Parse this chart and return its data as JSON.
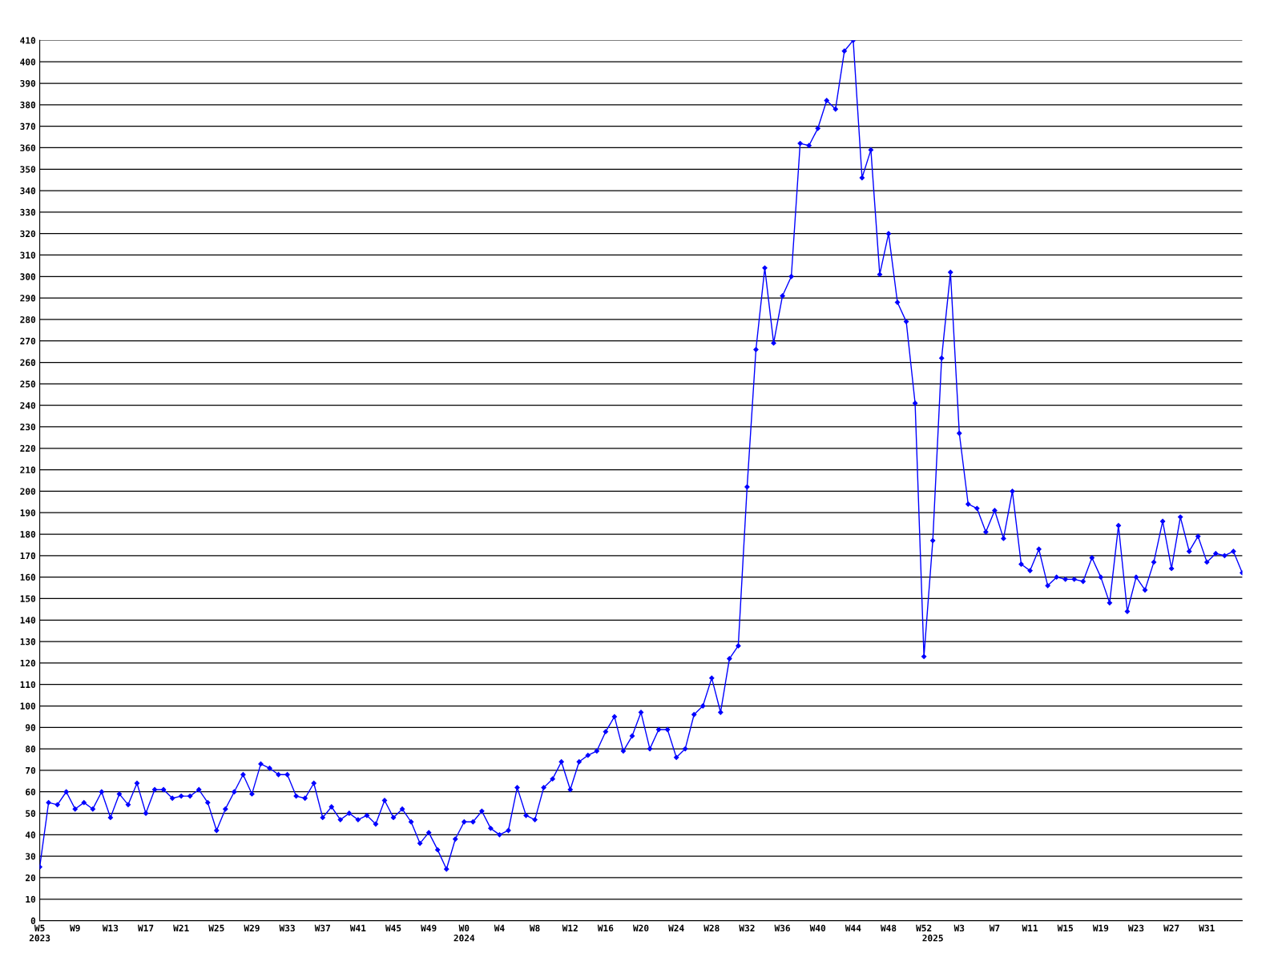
{
  "chart_data": {
    "type": "line",
    "categories": [
      "W5\n2023",
      null,
      null,
      null,
      "W9",
      null,
      null,
      null,
      "W13",
      null,
      null,
      null,
      "W17",
      null,
      null,
      null,
      "W21",
      null,
      null,
      null,
      "W25",
      null,
      null,
      null,
      "W29",
      null,
      null,
      null,
      "W33",
      null,
      null,
      null,
      "W37",
      null,
      null,
      null,
      "W41",
      null,
      null,
      null,
      "W45",
      null,
      null,
      null,
      "W49",
      null,
      null,
      null,
      "W0\n2024",
      null,
      null,
      null,
      "W4",
      null,
      null,
      null,
      "W8",
      null,
      null,
      null,
      "W12",
      null,
      null,
      null,
      "W16",
      null,
      null,
      null,
      "W20",
      null,
      null,
      null,
      "W24",
      null,
      null,
      null,
      "W28",
      null,
      null,
      null,
      "W32",
      null,
      null,
      null,
      "W36",
      null,
      null,
      null,
      "W40",
      null,
      null,
      null,
      "W44",
      null,
      null,
      null,
      "W48",
      null,
      null,
      null,
      "W52",
      "\n2025",
      null,
      null,
      "W3",
      null,
      null,
      null,
      "W7",
      null,
      null,
      null,
      "W11",
      null,
      null,
      null,
      "W15",
      null,
      null,
      null,
      "W19",
      null,
      null,
      null,
      "W23",
      null,
      null,
      null,
      "W27",
      null,
      null,
      null,
      "W31",
      null,
      null,
      null,
      null
    ],
    "series": [
      {
        "color": "#0000ff",
        "values": [
          25,
          55,
          54,
          60,
          52,
          55,
          52,
          60,
          48,
          59,
          54,
          64,
          50,
          61,
          61,
          57,
          58,
          58,
          61,
          55,
          42,
          52,
          60,
          68,
          59,
          73,
          71,
          68,
          68,
          58,
          57,
          64,
          48,
          53,
          47,
          50,
          47,
          49,
          45,
          56,
          48,
          52,
          46,
          36,
          41,
          33,
          24,
          38,
          46,
          46,
          51,
          43,
          40,
          42,
          62,
          49,
          47,
          62,
          66,
          74,
          61,
          74,
          77,
          79,
          88,
          95,
          79,
          86,
          97,
          80,
          89,
          89,
          76,
          80,
          96,
          100,
          113,
          97,
          122,
          128,
          202,
          266,
          304,
          269,
          291,
          300,
          362,
          361,
          369,
          382,
          378,
          405,
          410,
          346,
          359,
          301,
          320,
          288,
          279,
          241,
          123,
          177,
          262,
          302,
          227,
          194,
          192,
          181,
          191,
          178,
          200,
          166,
          163,
          173,
          156,
          160,
          159,
          159,
          158,
          169,
          160,
          148,
          184,
          144,
          160,
          154,
          167,
          186,
          164,
          188,
          172,
          179,
          167,
          171,
          170,
          172,
          162
        ]
      }
    ],
    "ylim": [
      0,
      410
    ],
    "yticks": [
      0,
      10,
      20,
      30,
      40,
      50,
      60,
      70,
      80,
      90,
      100,
      110,
      120,
      130,
      140,
      150,
      160,
      170,
      180,
      190,
      200,
      210,
      220,
      230,
      240,
      250,
      260,
      270,
      280,
      290,
      300,
      310,
      320,
      330,
      340,
      350,
      360,
      370,
      380,
      390,
      400,
      410
    ],
    "grid": "y",
    "marker": "diamond",
    "line_style": "solid"
  }
}
